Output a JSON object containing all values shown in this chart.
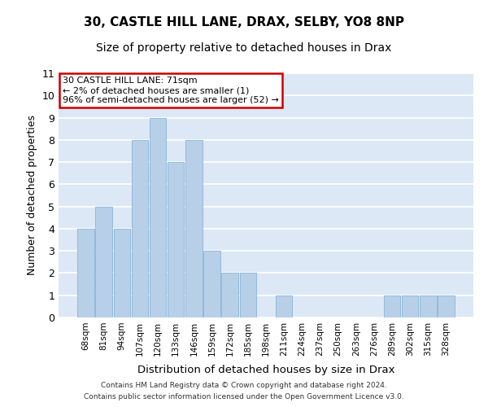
{
  "title1": "30, CASTLE HILL LANE, DRAX, SELBY, YO8 8NP",
  "title2": "Size of property relative to detached houses in Drax",
  "xlabel": "Distribution of detached houses by size in Drax",
  "ylabel": "Number of detached properties",
  "categories": [
    "68sqm",
    "81sqm",
    "94sqm",
    "107sqm",
    "120sqm",
    "133sqm",
    "146sqm",
    "159sqm",
    "172sqm",
    "185sqm",
    "198sqm",
    "211sqm",
    "224sqm",
    "237sqm",
    "250sqm",
    "263sqm",
    "276sqm",
    "289sqm",
    "302sqm",
    "315sqm",
    "328sqm"
  ],
  "values": [
    4,
    5,
    4,
    8,
    9,
    7,
    8,
    3,
    2,
    2,
    0,
    1,
    0,
    0,
    0,
    0,
    0,
    1,
    1,
    1,
    1
  ],
  "bar_color": "#b8cfe8",
  "bar_edge_color": "#7aaed4",
  "ylim": [
    0,
    11
  ],
  "yticks": [
    0,
    1,
    2,
    3,
    4,
    5,
    6,
    7,
    8,
    9,
    10,
    11
  ],
  "annotation_box_text": "30 CASTLE HILL LANE: 71sqm\n← 2% of detached houses are smaller (1)\n96% of semi-detached houses are larger (52) →",
  "annotation_box_color": "#ffffff",
  "annotation_box_edge_color": "#cc0000",
  "footer1": "Contains HM Land Registry data © Crown copyright and database right 2024.",
  "footer2": "Contains public sector information licensed under the Open Government Licence v3.0.",
  "bg_color": "#dce8f5",
  "grid_color": "#ffffff",
  "title1_fontsize": 11,
  "title2_fontsize": 10
}
